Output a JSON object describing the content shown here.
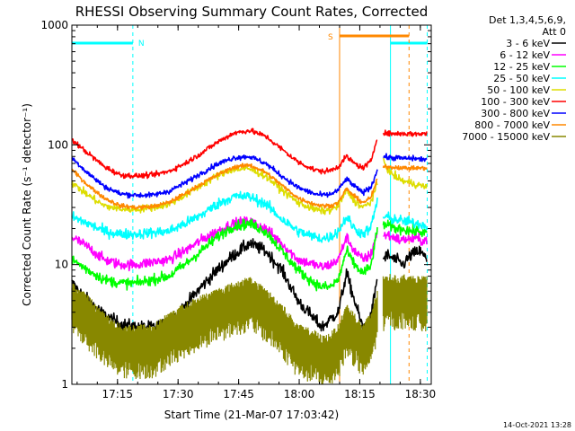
{
  "chart_data": {
    "type": "line",
    "title": "RHESSI Observing Summary Count Rates, Corrected",
    "xlabel": "Start Time (21-Mar-07 17:03:42)",
    "ylabel": "Corrected Count Rate (s⁻¹ detector⁻¹)",
    "yscale": "log",
    "ylim": [
      1,
      1000
    ],
    "xlim_minutes_after_start": [
      0,
      89
    ],
    "x_unit": "minutes after 17:03:42",
    "x_ticks": [
      {
        "label": "17:15",
        "x": 11.3
      },
      {
        "label": "17:30",
        "x": 26.3
      },
      {
        "label": "17:45",
        "x": 41.3
      },
      {
        "label": "18:00",
        "x": 56.3
      },
      {
        "label": "18:15",
        "x": 71.3
      },
      {
        "label": "18:30",
        "x": 86.3
      }
    ],
    "y_ticks": [
      {
        "label": "1",
        "y": 1
      },
      {
        "label": "10",
        "y": 10
      },
      {
        "label": "100",
        "y": 100
      },
      {
        "label": "1000",
        "y": 1000
      }
    ],
    "legend_header": [
      "Det 1,3,4,5,6,9,",
      "Att 0"
    ],
    "legend_position": "right",
    "series": [
      {
        "name": "3 - 6 keV",
        "color": "#000000",
        "noise": 0.06,
        "x": [
          0,
          4,
          8,
          12,
          16,
          20,
          24,
          28,
          32,
          36,
          40,
          44,
          48,
          52,
          56,
          60,
          62,
          64,
          66,
          68,
          70,
          72,
          74,
          75.7
        ],
        "y": [
          7,
          5,
          3.8,
          3.2,
          3,
          3,
          3.2,
          4.5,
          6.5,
          9,
          12,
          15,
          13,
          9,
          5,
          3.5,
          3,
          3.5,
          4,
          8.5,
          5,
          3,
          3.5,
          8
        ],
        "x2": [
          77.1,
          78,
          79,
          80,
          81,
          82,
          83,
          84,
          85,
          86,
          87,
          88
        ],
        "y2": [
          11,
          12,
          11.5,
          11,
          10.5,
          10,
          11,
          12,
          12.5,
          13,
          12,
          11
        ]
      },
      {
        "name": "6 - 12 keV",
        "color": "#ff00ff",
        "noise": 0.05,
        "x": [
          0,
          4,
          8,
          12,
          16,
          20,
          24,
          28,
          32,
          36,
          40,
          44,
          48,
          52,
          56,
          60,
          62,
          64,
          66,
          68,
          70,
          72,
          74,
          75.7
        ],
        "y": [
          17,
          14,
          11,
          10,
          10,
          10.5,
          11,
          13,
          16,
          19,
          22,
          23,
          20,
          15,
          11,
          10,
          9.5,
          10,
          11,
          17,
          13,
          11,
          12,
          19
        ],
        "x2": [
          77.1,
          78,
          79,
          80,
          81,
          82,
          83,
          84,
          85,
          86,
          87,
          88
        ],
        "y2": [
          17,
          18,
          17,
          17,
          16,
          16,
          16.5,
          16,
          17,
          16,
          16,
          16
        ]
      },
      {
        "name": "12 - 25 keV",
        "color": "#00ff00",
        "noise": 0.05,
        "x": [
          0,
          4,
          8,
          12,
          16,
          20,
          24,
          28,
          32,
          36,
          40,
          44,
          48,
          52,
          56,
          60,
          62,
          64,
          66,
          68,
          70,
          72,
          74,
          75.7
        ],
        "y": [
          11,
          9,
          7.5,
          7,
          7,
          7.5,
          8,
          10,
          13,
          17,
          21,
          22,
          19,
          13,
          9,
          7,
          6.5,
          6.5,
          7.5,
          13,
          10,
          8.5,
          9.5,
          20
        ],
        "x2": [
          77.1,
          78,
          79,
          80,
          81,
          82,
          83,
          84,
          85,
          86,
          87,
          88
        ],
        "y2": [
          22,
          21,
          21,
          20,
          20,
          20,
          19.5,
          19,
          19,
          19,
          18.5,
          18
        ]
      },
      {
        "name": "25 - 50 keV",
        "color": "#00ffff",
        "noise": 0.05,
        "x": [
          0,
          4,
          8,
          12,
          16,
          20,
          24,
          28,
          32,
          36,
          40,
          44,
          48,
          52,
          56,
          60,
          62,
          64,
          66,
          68,
          70,
          72,
          74,
          75.7
        ],
        "y": [
          25,
          22,
          19,
          18,
          18,
          18.5,
          19,
          22,
          26,
          32,
          37,
          37,
          32,
          24,
          19,
          17,
          16.5,
          17,
          19,
          25,
          20,
          18,
          20,
          35
        ],
        "x2": [
          77.1,
          78,
          79,
          80,
          81,
          82,
          83,
          84,
          85,
          86,
          87,
          88
        ],
        "y2": [
          25,
          25,
          24,
          24,
          23.5,
          23,
          23,
          22.5,
          22,
          22,
          21.5,
          21
        ]
      },
      {
        "name": "50 - 100 keV",
        "color": "#dddd00",
        "noise": 0.035,
        "x": [
          0,
          4,
          8,
          12,
          16,
          20,
          24,
          28,
          32,
          36,
          40,
          44,
          48,
          52,
          56,
          60,
          62,
          64,
          66,
          68,
          70,
          72,
          74,
          75.7
        ],
        "y": [
          48,
          38,
          31,
          29,
          29,
          30,
          32,
          38,
          46,
          55,
          63,
          63,
          55,
          42,
          33,
          29,
          28,
          28.5,
          31,
          42,
          34,
          30,
          33,
          48
        ],
        "x2": [
          77.1,
          78,
          79,
          80,
          81,
          82,
          83,
          84,
          85,
          86,
          87,
          88
        ],
        "y2": [
          75,
          65,
          58,
          55,
          52,
          50,
          49,
          48,
          47,
          46,
          45,
          45
        ]
      },
      {
        "name": "100 - 300 keV",
        "color": "#ff0000",
        "noise": 0.025,
        "x": [
          0,
          4,
          8,
          12,
          16,
          20,
          24,
          28,
          32,
          36,
          40,
          44,
          48,
          52,
          56,
          60,
          62,
          64,
          66,
          68,
          70,
          72,
          74,
          75.7
        ],
        "y": [
          110,
          85,
          66,
          56,
          55,
          56,
          60,
          70,
          85,
          105,
          125,
          132,
          118,
          92,
          72,
          62,
          60,
          61,
          66,
          80,
          70,
          64,
          72,
          118
        ],
        "x2": [
          77.1,
          78,
          79,
          80,
          81,
          82,
          83,
          84,
          85,
          86,
          87,
          88
        ],
        "y2": [
          125,
          125,
          124,
          124,
          124,
          124,
          124,
          124,
          123,
          124,
          124,
          124
        ]
      },
      {
        "name": "300 - 800 keV",
        "color": "#0000ff",
        "noise": 0.025,
        "x": [
          0,
          4,
          8,
          12,
          16,
          20,
          24,
          28,
          32,
          36,
          40,
          44,
          48,
          52,
          56,
          60,
          62,
          64,
          66,
          68,
          70,
          72,
          74,
          75.7
        ],
        "y": [
          78,
          58,
          45,
          39,
          38,
          38,
          41,
          48,
          58,
          69,
          78,
          80,
          70,
          55,
          44,
          39,
          38,
          38.5,
          42,
          52,
          45,
          40,
          44,
          62
        ],
        "x2": [
          77.1,
          78,
          79,
          80,
          81,
          82,
          83,
          84,
          85,
          86,
          87,
          88
        ],
        "y2": [
          80,
          79,
          78,
          78,
          78,
          77,
          77,
          77,
          77,
          76,
          76,
          76
        ]
      },
      {
        "name": "800 - 7000 keV",
        "color": "#ff8800",
        "noise": 0.02,
        "x": [
          0,
          4,
          8,
          12,
          16,
          20,
          24,
          28,
          32,
          36,
          40,
          44,
          48,
          52,
          56,
          60,
          62,
          64,
          66,
          68,
          70,
          72,
          74,
          75.7
        ],
        "y": [
          62,
          46,
          36,
          31,
          30,
          30.5,
          33,
          39,
          47,
          56,
          65,
          68,
          59,
          46,
          36,
          32,
          31,
          31,
          33,
          43,
          37,
          33,
          36,
          52
        ],
        "x2": [
          77.1,
          78,
          79,
          80,
          81,
          82,
          83,
          84,
          85,
          86,
          87,
          88
        ],
        "y2": [
          65,
          66,
          65,
          65,
          65,
          64,
          64,
          64,
          64,
          64,
          64,
          64
        ]
      },
      {
        "name": "7000 - 15000 keV",
        "color": "#888800",
        "noise": 0.0,
        "mode": "hash",
        "x": [
          0,
          4,
          8,
          12,
          16,
          20,
          24,
          28,
          32,
          36,
          40,
          44,
          48,
          52,
          56,
          60,
          62,
          64,
          66,
          68,
          70,
          72,
          74,
          75.7
        ],
        "y": [
          4.5,
          3.5,
          2.5,
          2,
          2,
          2,
          2.5,
          3,
          3.5,
          4,
          4.5,
          5,
          4,
          3,
          2,
          1.8,
          1.6,
          1.7,
          2,
          3,
          2.5,
          2,
          2.5,
          4
        ],
        "x2": [
          77.1,
          78,
          79,
          80,
          81,
          82,
          83,
          84,
          85,
          86,
          87,
          88
        ],
        "y2": [
          5,
          5.2,
          5.3,
          5.1,
          5,
          5.2,
          5.3,
          5.1,
          5,
          5.1,
          5,
          5
        ]
      }
    ],
    "annotations": {
      "night_bars": [
        {
          "x1": 0,
          "x2": 15.1
        },
        {
          "x1": 78.9,
          "x2": 88
        }
      ],
      "night_lines_solid": [
        0,
        78.9
      ],
      "night_lines_dashed": [
        15.1,
        88
      ],
      "night_label": "N",
      "night_color": "#00ffff",
      "saa_bar": {
        "x1": 66.3,
        "x2": 83.5,
        "label": "S"
      },
      "saa_line_solid": 66.3,
      "saa_line_dashed": 83.5,
      "saa_color": "#ff8800"
    }
  },
  "footer": {
    "timestamp": "14-Oct-2021 13:28"
  }
}
